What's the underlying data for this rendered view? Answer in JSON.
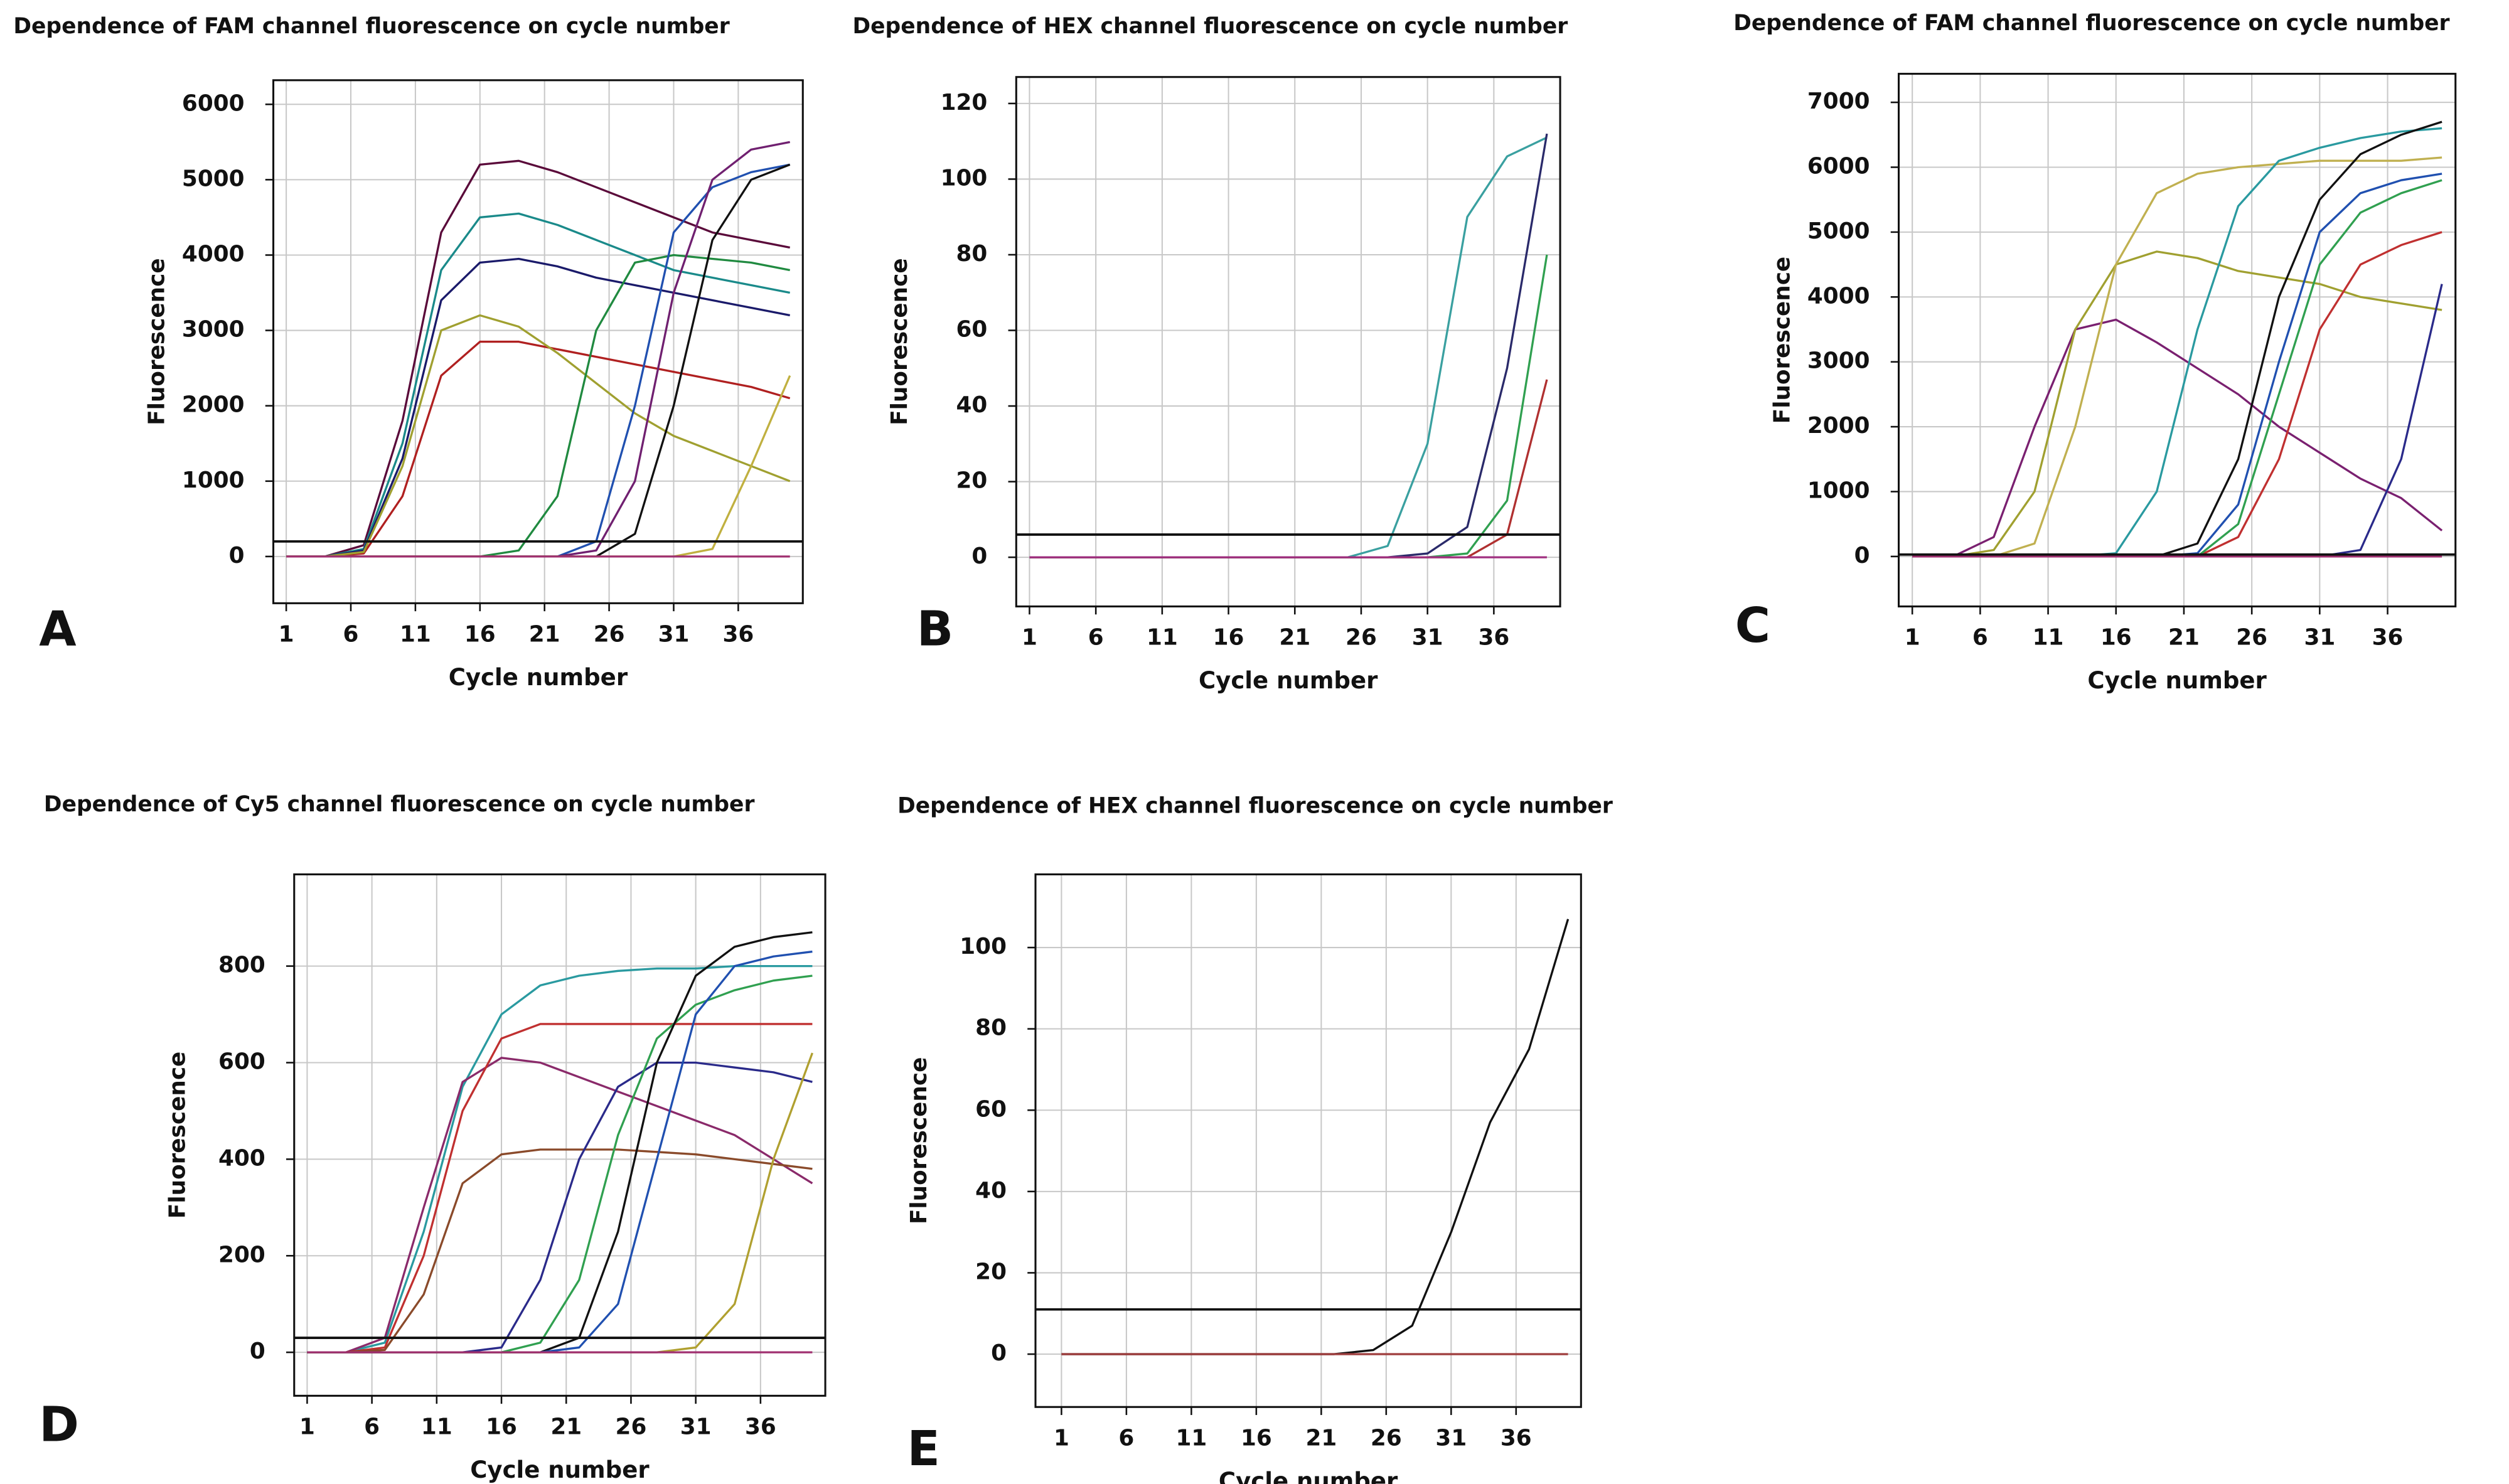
{
  "chart_data": [
    {
      "type": "line",
      "panel_label": "A",
      "title": "Dependence of FAM channel fluorescence on cycle number",
      "xlabel": "Cycle number",
      "ylabel": "Fluorescence",
      "x": [
        1,
        4,
        7,
        10,
        13,
        16,
        19,
        22,
        25,
        28,
        31,
        34,
        37,
        40
      ],
      "xlim": [
        0,
        41
      ],
      "xticks": [
        1,
        6,
        11,
        16,
        21,
        26,
        31,
        36
      ],
      "ylim": [
        -620,
        6320
      ],
      "yticks": [
        0,
        1000,
        2000,
        3000,
        4000,
        5000,
        6000
      ],
      "grid": true,
      "threshold": 200,
      "series": [
        {
          "color": "#5a0a3a",
          "values": [
            0,
            0,
            150,
            1800,
            4300,
            5200,
            5250,
            5100,
            4900,
            4700,
            4500,
            4300,
            4200,
            4100
          ]
        },
        {
          "color": "#1a8a8a",
          "values": [
            0,
            0,
            100,
            1500,
            3800,
            4500,
            4550,
            4400,
            4200,
            4000,
            3800,
            3700,
            3600,
            3500
          ]
        },
        {
          "color": "#1a1a6a",
          "values": [
            0,
            0,
            80,
            1300,
            3400,
            3900,
            3950,
            3850,
            3700,
            3600,
            3500,
            3400,
            3300,
            3200
          ]
        },
        {
          "color": "#b02020",
          "values": [
            0,
            0,
            40,
            800,
            2400,
            2850,
            2850,
            2750,
            2650,
            2550,
            2450,
            2350,
            2250,
            2100
          ]
        },
        {
          "color": "#a0a030",
          "values": [
            0,
            0,
            60,
            1200,
            3000,
            3200,
            3050,
            2700,
            2300,
            1900,
            1600,
            1400,
            1200,
            1000
          ]
        },
        {
          "color": "#208a40",
          "values": [
            0,
            0,
            0,
            0,
            0,
            0,
            80,
            800,
            3000,
            3900,
            4000,
            3950,
            3900,
            3800
          ]
        },
        {
          "color": "#2050b0",
          "values": [
            0,
            0,
            0,
            0,
            0,
            0,
            0,
            0,
            200,
            2000,
            4300,
            4900,
            5100,
            5200
          ]
        },
        {
          "color": "#702070",
          "values": [
            0,
            0,
            0,
            0,
            0,
            0,
            0,
            0,
            80,
            1000,
            3500,
            5000,
            5400,
            5500
          ]
        },
        {
          "color": "#111111",
          "values": [
            0,
            0,
            0,
            0,
            0,
            0,
            0,
            0,
            0,
            300,
            2000,
            4200,
            5000,
            5200
          ]
        },
        {
          "color": "#c0b040",
          "values": [
            0,
            0,
            0,
            0,
            0,
            0,
            0,
            0,
            0,
            0,
            0,
            100,
            1200,
            2400
          ]
        },
        {
          "color": "#a03070",
          "values": [
            0,
            0,
            0,
            0,
            0,
            0,
            0,
            0,
            0,
            0,
            0,
            0,
            0,
            0
          ]
        }
      ]
    },
    {
      "type": "line",
      "panel_label": "B",
      "title": "Dependence of HEX channel fluorescence on cycle number",
      "xlabel": "Cycle number",
      "ylabel": "Fluorescence",
      "x": [
        1,
        4,
        7,
        10,
        13,
        16,
        19,
        22,
        25,
        28,
        31,
        34,
        37,
        40
      ],
      "xlim": [
        0,
        41
      ],
      "xticks": [
        1,
        6,
        11,
        16,
        21,
        26,
        31,
        36
      ],
      "ylim": [
        -13,
        127
      ],
      "yticks": [
        0,
        20,
        40,
        60,
        80,
        100,
        120
      ],
      "grid": true,
      "threshold": 6,
      "series": [
        {
          "color": "#3aa0a0",
          "values": [
            0,
            0,
            0,
            0,
            0,
            0,
            0,
            0,
            0,
            3,
            30,
            90,
            106,
            111
          ]
        },
        {
          "color": "#2a2a6a",
          "values": [
            0,
            0,
            0,
            0,
            0,
            0,
            0,
            0,
            0,
            0,
            1,
            8,
            50,
            112
          ]
        },
        {
          "color": "#30a050",
          "values": [
            0,
            0,
            0,
            0,
            0,
            0,
            0,
            0,
            0,
            0,
            0,
            1,
            15,
            80
          ]
        },
        {
          "color": "#b03030",
          "values": [
            0,
            0,
            0,
            0,
            0,
            0,
            0,
            0,
            0,
            0,
            0,
            0,
            6,
            47
          ]
        },
        {
          "color": "#a03080",
          "values": [
            0,
            0,
            0,
            0,
            0,
            0,
            0,
            0,
            0,
            0,
            0,
            0,
            0,
            0
          ]
        }
      ]
    },
    {
      "type": "line",
      "panel_label": "C",
      "title": "Dependence of FAM channel fluorescence on cycle number",
      "xlabel": "Cycle number",
      "ylabel": "Fluorescence",
      "x": [
        1,
        4,
        7,
        10,
        13,
        16,
        19,
        22,
        25,
        28,
        31,
        34,
        37,
        40
      ],
      "xlim": [
        0,
        41
      ],
      "xticks": [
        1,
        6,
        11,
        16,
        21,
        26,
        31,
        36
      ],
      "ylim": [
        -770,
        7440
      ],
      "yticks": [
        0,
        1000,
        2000,
        3000,
        4000,
        5000,
        6000,
        7000
      ],
      "grid": true,
      "threshold": 30,
      "series": [
        {
          "color": "#7a2070",
          "values": [
            0,
            0,
            300,
            2000,
            3500,
            3650,
            3300,
            2900,
            2500,
            2000,
            1600,
            1200,
            900,
            400
          ]
        },
        {
          "color": "#a0a030",
          "values": [
            0,
            0,
            100,
            1000,
            3500,
            4500,
            4700,
            4600,
            4400,
            4300,
            4200,
            4000,
            3900,
            3800
          ]
        },
        {
          "color": "#c0b050",
          "values": [
            0,
            0,
            0,
            200,
            2000,
            4500,
            5600,
            5900,
            6000,
            6050,
            6100,
            6100,
            6100,
            6150
          ]
        },
        {
          "color": "#2a9aa0",
          "values": [
            0,
            0,
            0,
            0,
            0,
            50,
            1000,
            3500,
            5400,
            6100,
            6300,
            6450,
            6550,
            6600
          ]
        },
        {
          "color": "#111111",
          "values": [
            0,
            0,
            0,
            0,
            0,
            0,
            0,
            200,
            1500,
            4000,
            5500,
            6200,
            6500,
            6700
          ]
        },
        {
          "color": "#2050b0",
          "values": [
            0,
            0,
            0,
            0,
            0,
            0,
            0,
            50,
            800,
            3000,
            5000,
            5600,
            5800,
            5900
          ]
        },
        {
          "color": "#c03030",
          "values": [
            0,
            0,
            0,
            0,
            0,
            0,
            0,
            0,
            300,
            1500,
            3500,
            4500,
            4800,
            5000
          ]
        },
        {
          "color": "#30a050",
          "values": [
            0,
            0,
            0,
            0,
            0,
            0,
            0,
            0,
            500,
            2500,
            4500,
            5300,
            5600,
            5800
          ]
        },
        {
          "color": "#2a2a8a",
          "values": [
            0,
            0,
            0,
            0,
            0,
            0,
            0,
            0,
            0,
            0,
            0,
            100,
            1500,
            4200
          ]
        },
        {
          "color": "#a03070",
          "values": [
            0,
            0,
            0,
            0,
            0,
            0,
            0,
            0,
            0,
            0,
            0,
            0,
            0,
            0
          ]
        }
      ]
    },
    {
      "type": "line",
      "panel_label": "D",
      "title": "Dependence of Cy5 channel fluorescence on cycle number",
      "xlabel": "Cycle number",
      "ylabel": "Fluorescence",
      "x": [
        1,
        4,
        7,
        10,
        13,
        16,
        19,
        22,
        25,
        28,
        31,
        34,
        37,
        40
      ],
      "xlim": [
        0,
        41
      ],
      "xticks": [
        1,
        6,
        11,
        16,
        21,
        26,
        31,
        36
      ],
      "ylim": [
        -90,
        990
      ],
      "yticks": [
        0,
        200,
        400,
        600,
        800
      ],
      "grid": true,
      "threshold": 30,
      "series": [
        {
          "color": "#2a9aa0",
          "values": [
            0,
            0,
            20,
            250,
            550,
            700,
            760,
            780,
            790,
            795,
            795,
            800,
            800,
            800
          ]
        },
        {
          "color": "#8a2a6a",
          "values": [
            0,
            0,
            30,
            300,
            560,
            610,
            600,
            570,
            540,
            510,
            480,
            450,
            400,
            350
          ]
        },
        {
          "color": "#c03030",
          "values": [
            0,
            0,
            10,
            200,
            500,
            650,
            680,
            680,
            680,
            680,
            680,
            680,
            680,
            680
          ]
        },
        {
          "color": "#8a4a2a",
          "values": [
            0,
            0,
            5,
            120,
            350,
            410,
            420,
            420,
            420,
            415,
            410,
            400,
            390,
            380
          ]
        },
        {
          "color": "#2a2a8a",
          "values": [
            0,
            0,
            0,
            0,
            0,
            10,
            150,
            400,
            550,
            600,
            600,
            590,
            580,
            560
          ]
        },
        {
          "color": "#30a050",
          "values": [
            0,
            0,
            0,
            0,
            0,
            0,
            20,
            150,
            450,
            650,
            720,
            750,
            770,
            780
          ]
        },
        {
          "color": "#111111",
          "values": [
            0,
            0,
            0,
            0,
            0,
            0,
            0,
            30,
            250,
            600,
            780,
            840,
            860,
            870
          ]
        },
        {
          "color": "#2050b0",
          "values": [
            0,
            0,
            0,
            0,
            0,
            0,
            0,
            10,
            100,
            400,
            700,
            800,
            820,
            830
          ]
        },
        {
          "color": "#b0a030",
          "values": [
            0,
            0,
            0,
            0,
            0,
            0,
            0,
            0,
            0,
            0,
            10,
            100,
            400,
            620
          ]
        },
        {
          "color": "#a03070",
          "values": [
            0,
            0,
            0,
            0,
            0,
            0,
            0,
            0,
            0,
            0,
            0,
            0,
            0,
            0
          ]
        }
      ]
    },
    {
      "type": "line",
      "panel_label": "E",
      "title": "Dependence of HEX channel fluorescence on cycle number",
      "xlabel": "Cycle number",
      "ylabel": "Fluorescence",
      "x": [
        1,
        4,
        7,
        10,
        13,
        16,
        19,
        22,
        25,
        28,
        31,
        34,
        37,
        40
      ],
      "xlim": [
        -1,
        41
      ],
      "xticks": [
        1,
        6,
        11,
        16,
        21,
        26,
        31,
        36
      ],
      "ylim": [
        -13,
        118
      ],
      "yticks": [
        0,
        20,
        40,
        60,
        80,
        100
      ],
      "grid": true,
      "threshold": 11,
      "series": [
        {
          "color": "#111111",
          "values": [
            0,
            0,
            0,
            0,
            0,
            0,
            0,
            0,
            1,
            7,
            30,
            57,
            75,
            107
          ]
        },
        {
          "color": "#a04040",
          "values": [
            0,
            0,
            0,
            0,
            0,
            0,
            0,
            0,
            0,
            0,
            0,
            0,
            0,
            0
          ]
        }
      ]
    }
  ]
}
